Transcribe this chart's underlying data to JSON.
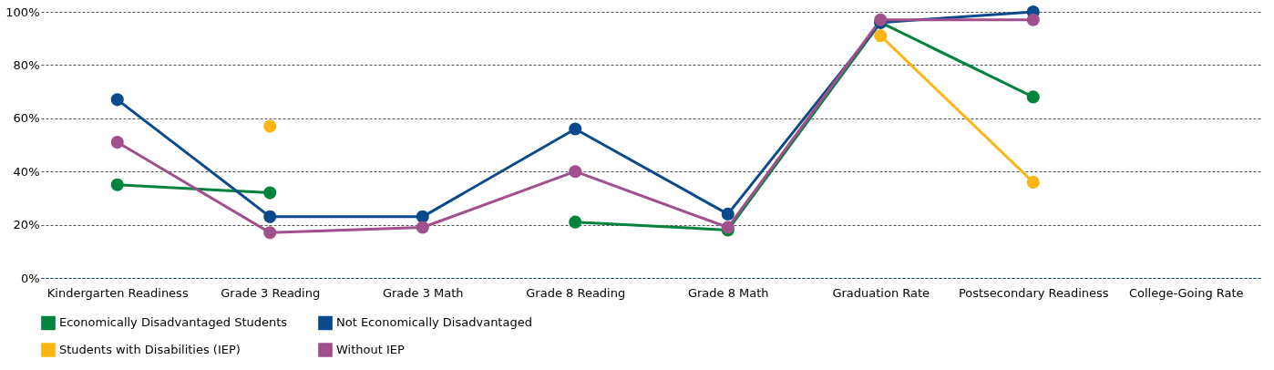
{
  "chart_data": {
    "type": "line",
    "categories": [
      "Kindergarten Readiness",
      "Grade 3 Reading",
      "Grade 3 Math",
      "Grade 8 Reading",
      "Grade 8 Math",
      "Graduation Rate",
      "Postsecondary Readiness",
      "College-Going Rate"
    ],
    "series": [
      {
        "name": "Economically Disadvantaged Students",
        "color": "#00843d",
        "values": [
          35,
          32,
          null,
          21,
          18,
          96,
          68,
          null
        ]
      },
      {
        "name": "Not Economically Disadvantaged",
        "color": "#0a4a8c",
        "values": [
          67,
          23,
          23,
          56,
          24,
          96,
          100,
          null
        ]
      },
      {
        "name": "Students with Disabilities (IEP)",
        "color": "#fdb515",
        "values": [
          null,
          57,
          null,
          null,
          null,
          91,
          36,
          null
        ]
      },
      {
        "name": "Without IEP",
        "color": "#a0508c",
        "values": [
          51,
          17,
          19,
          40,
          19,
          97,
          97,
          null
        ]
      }
    ],
    "ylim": [
      0,
      100
    ],
    "yticks": [
      {
        "value": 0,
        "label": "0%"
      },
      {
        "value": 20,
        "label": "20%"
      },
      {
        "value": 40,
        "label": "40%"
      },
      {
        "value": 60,
        "label": "60%"
      },
      {
        "value": 80,
        "label": "80%"
      },
      {
        "value": 100,
        "label": "100%"
      }
    ],
    "grid": "y",
    "legend": "bottom",
    "marker": "circle",
    "line_style": "solid"
  }
}
